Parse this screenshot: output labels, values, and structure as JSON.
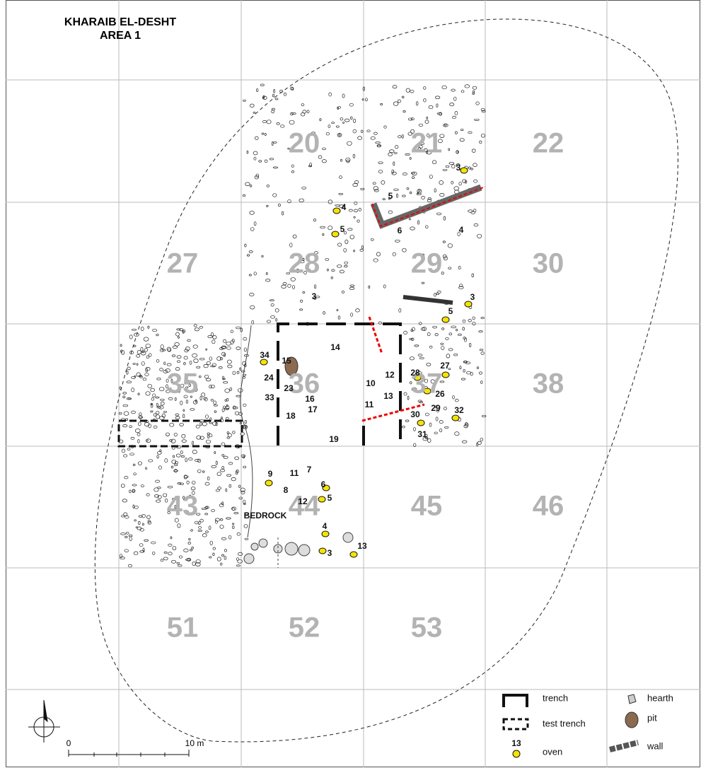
{
  "header": {
    "title_line1": "KHARAIB EL-DESHT",
    "title_line2": "AREA 1"
  },
  "squares": [
    "20",
    "21",
    "22",
    "27",
    "28",
    "29",
    "30",
    "35",
    "36",
    "37",
    "38",
    "43",
    "44",
    "45",
    "46",
    "51",
    "52",
    "53"
  ],
  "features": [
    "5",
    "4",
    "5",
    "6",
    "4",
    "3",
    "3",
    "3",
    "5",
    "14",
    "15",
    "34",
    "24",
    "23",
    "33",
    "16",
    "18",
    "17",
    "19",
    "10",
    "12",
    "13",
    "11",
    "28",
    "26",
    "27",
    "29",
    "30",
    "31",
    "32",
    "9",
    "11",
    "7",
    "8",
    "6",
    "12",
    "5",
    "4",
    "3",
    "13"
  ],
  "bedrock": "BEDROCK",
  "scale": {
    "start": "0",
    "end": "10 m"
  },
  "legend": {
    "trench": "trench",
    "test_trench": "test trench",
    "oven_number": "13",
    "oven": "oven",
    "hearth": "hearth",
    "pit": "pit",
    "wall": "wall"
  }
}
